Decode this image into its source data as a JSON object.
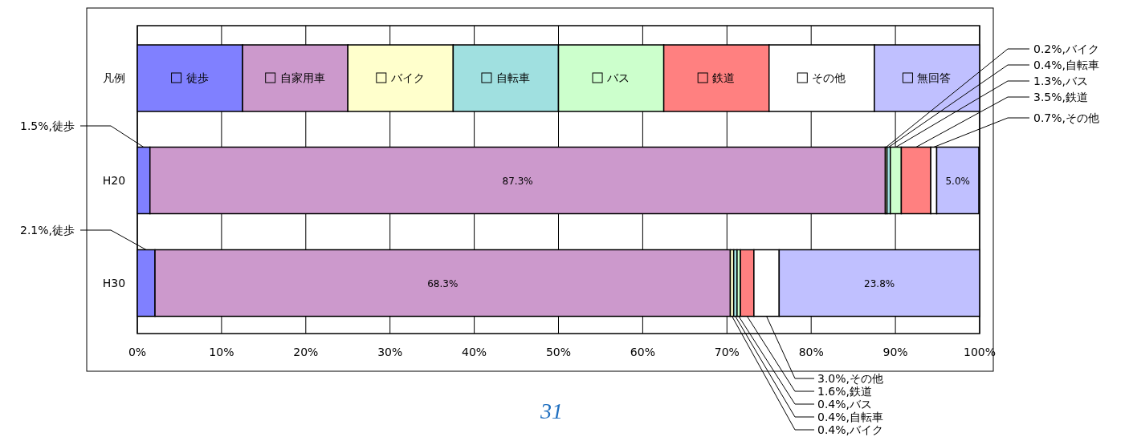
{
  "chart_data": {
    "type": "bar",
    "orientation": "horizontal",
    "stacked": true,
    "categories": [
      "H20",
      "H30"
    ],
    "legend_title": "凡例",
    "legend": "top",
    "xlim": [
      0,
      100
    ],
    "xticks": [
      {
        "value": 0,
        "label": "0%"
      },
      {
        "value": 10,
        "label": "10%"
      },
      {
        "value": 20,
        "label": "20%"
      },
      {
        "value": 30,
        "label": "30%"
      },
      {
        "value": 40,
        "label": "40%"
      },
      {
        "value": 50,
        "label": "50%"
      },
      {
        "value": 60,
        "label": "60%"
      },
      {
        "value": 70,
        "label": "70%"
      },
      {
        "value": 80,
        "label": "80%"
      },
      {
        "value": 90,
        "label": "90%"
      },
      {
        "value": 100,
        "label": "100%"
      }
    ],
    "grid": "x",
    "series": [
      {
        "name": "徒歩",
        "color": "#8080ff",
        "values": [
          1.5,
          2.1
        ],
        "value_labels": [
          "1.5%,徒歩",
          "2.1%,徒歩"
        ]
      },
      {
        "name": "自家用車",
        "color": "#cc99cc",
        "values": [
          87.3,
          68.3
        ],
        "value_labels": [
          "87.3%",
          "68.3%"
        ]
      },
      {
        "name": "バイク",
        "color": "#ffffcc",
        "values": [
          0.2,
          0.4
        ],
        "value_labels": [
          "0.2%,バイク",
          "0.4%,バイク"
        ]
      },
      {
        "name": "自転車",
        "color": "#a0e0e0",
        "values": [
          0.4,
          0.4
        ],
        "value_labels": [
          "0.4%,自転車",
          "0.4%,自転車"
        ]
      },
      {
        "name": "バス",
        "color": "#ccffcc",
        "values": [
          1.3,
          0.4
        ],
        "value_labels": [
          "1.3%,バス",
          "0.4%,バス"
        ]
      },
      {
        "name": "鉄道",
        "color": "#ff8080",
        "values": [
          3.5,
          1.6
        ],
        "value_labels": [
          "3.5%,鉄道",
          "1.6%,鉄道"
        ]
      },
      {
        "name": "その他",
        "color": "#ffffff",
        "values": [
          0.7,
          3.0
        ],
        "value_labels": [
          "0.7%,その他",
          "3.0%,その他"
        ]
      },
      {
        "name": "無回答",
        "color": "#c0c0ff",
        "values": [
          5.0,
          23.8
        ],
        "value_labels": [
          "5.0%",
          "23.8%"
        ]
      }
    ],
    "annotations": [
      "31"
    ]
  }
}
